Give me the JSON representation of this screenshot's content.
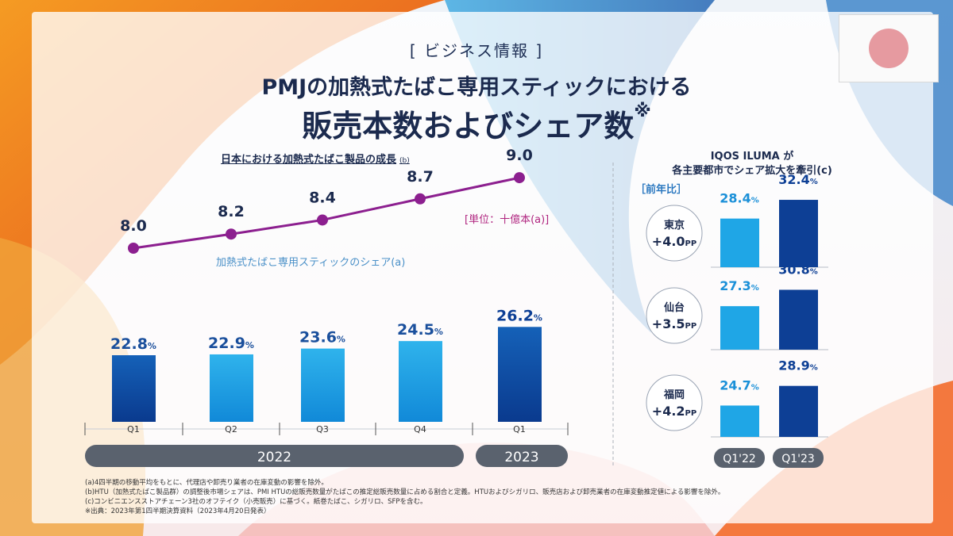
{
  "header": {
    "section_tag": "[ ビジネス情報 ]",
    "title_line1": "PMJの加熱式たばこ専用スティックにおける",
    "title_line2": "販売本数およびシェア数",
    "title_mark": "※"
  },
  "flag": "japan-flag",
  "chart_data": [
    {
      "type": "line",
      "title": "日本における加熱式たばこ製品の成長",
      "title_note": "(b)",
      "unit_label": "[単位：十億本(a)]",
      "categories": [
        "Q1",
        "Q2",
        "Q3",
        "Q4",
        "Q1"
      ],
      "values": [
        8.0,
        8.2,
        8.4,
        8.7,
        9.0
      ],
      "value_labels": [
        "8.0",
        "8.2",
        "8.4",
        "8.7",
        "9.0"
      ],
      "color": "#8c1f8f"
    },
    {
      "type": "bar",
      "label": "加熱式たばこ専用スティックのシェア(a)",
      "categories": [
        "Q1",
        "Q2",
        "Q3",
        "Q4",
        "Q1"
      ],
      "values": [
        22.8,
        22.9,
        23.6,
        24.5,
        26.2
      ],
      "value_labels": [
        "22.8",
        "22.9",
        "23.6",
        "24.5",
        "26.2"
      ],
      "value_suffix": "%",
      "year_groups": [
        {
          "label": "2022",
          "count": 4
        },
        {
          "label": "2023",
          "count": 1
        }
      ]
    },
    {
      "type": "bar",
      "title_line1": "IQOS ILUMA が",
      "title_line2": "各主要都市でシェア拡大を牽引(c)",
      "yoy_label": "［前年比］",
      "categories": [
        "Q1'22",
        "Q1'23"
      ],
      "value_suffix": "%",
      "cities": [
        {
          "name": "東京",
          "change": "+4.0",
          "change_unit": "PP",
          "values": [
            28.4,
            32.4
          ],
          "value_labels": [
            "28.4",
            "32.4"
          ]
        },
        {
          "name": "仙台",
          "change": "+3.5",
          "change_unit": "PP",
          "values": [
            27.3,
            30.8
          ],
          "value_labels": [
            "27.3",
            "30.8"
          ]
        },
        {
          "name": "福岡",
          "change": "+4.2",
          "change_unit": "PP",
          "values": [
            24.7,
            28.9
          ],
          "value_labels": [
            "24.7",
            "28.9"
          ]
        }
      ]
    }
  ],
  "footnotes": [
    "(a)4四半期の移動平均をもとに、代理店や卸売り業者の在庫変動の影響を除外。",
    "(b)HTU（加熱式たばこ製品群）の調整後市場シェアは、PMI HTUの総販売数量がたばこの推定総販売数量に占める割合と定義。HTUおよびシガリロ、販売店および卸売業者の在庫変動推定値による影響を除外。",
    "(c)コンビニエンスストアチェーン3社のオフテイク（小売販売）に基づく。紙巻たばこ、シガリロ、SFPを含む。",
    "※出典：2023年第1四半期決算資料（2023年4月20日発表）"
  ],
  "colors": {
    "bar_light": "#29a9e6",
    "bar_dark": "#0d3f95",
    "line": "#8c1f8f",
    "pill": "#5a626e"
  }
}
